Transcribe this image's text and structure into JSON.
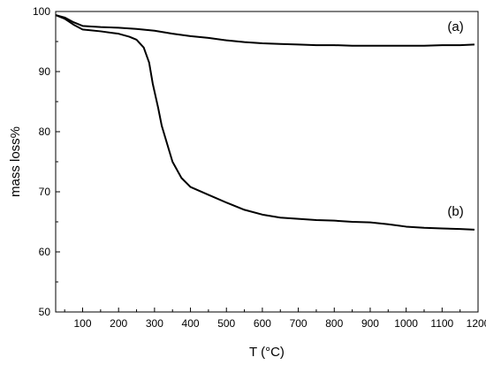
{
  "chart_data": {
    "type": "line",
    "title": "",
    "xlabel": "T (°C)",
    "ylabel": "mass loss%",
    "xlim": [
      25,
      1200
    ],
    "ylim": [
      50,
      100
    ],
    "x_ticks": [
      100,
      200,
      300,
      400,
      500,
      600,
      700,
      800,
      900,
      1000,
      1100,
      1200
    ],
    "y_ticks": [
      50,
      60,
      70,
      80,
      90,
      100
    ],
    "grid": false,
    "legend": "none",
    "series": [
      {
        "name": "(a)",
        "color": "#000000",
        "x": [
          25,
          50,
          75,
          100,
          150,
          200,
          250,
          300,
          350,
          400,
          450,
          500,
          550,
          600,
          650,
          700,
          750,
          800,
          850,
          900,
          950,
          1000,
          1050,
          1100,
          1150,
          1190
        ],
        "y": [
          99.4,
          99.0,
          98.2,
          97.6,
          97.4,
          97.3,
          97.1,
          96.8,
          96.3,
          95.9,
          95.6,
          95.2,
          94.9,
          94.7,
          94.6,
          94.5,
          94.4,
          94.4,
          94.3,
          94.3,
          94.3,
          94.3,
          94.3,
          94.4,
          94.4,
          94.5
        ]
      },
      {
        "name": "(b)",
        "color": "#000000",
        "x": [
          25,
          50,
          75,
          100,
          150,
          200,
          230,
          250,
          270,
          285,
          295,
          310,
          320,
          335,
          350,
          375,
          400,
          450,
          500,
          550,
          600,
          650,
          700,
          750,
          800,
          850,
          900,
          950,
          1000,
          1050,
          1100,
          1150,
          1190
        ],
        "y": [
          99.4,
          98.8,
          97.8,
          97.0,
          96.7,
          96.3,
          95.8,
          95.3,
          94.0,
          91.5,
          88.0,
          84.0,
          81.0,
          78.0,
          75.0,
          72.3,
          70.8,
          69.5,
          68.2,
          67.0,
          66.2,
          65.7,
          65.5,
          65.3,
          65.2,
          65.0,
          64.9,
          64.6,
          64.2,
          64.0,
          63.9,
          63.8,
          63.7
        ]
      }
    ],
    "annotations": [
      {
        "text": "(a)",
        "x": 1115,
        "y": 96.8
      },
      {
        "text": "(b)",
        "x": 1115,
        "y": 66.0
      }
    ]
  }
}
